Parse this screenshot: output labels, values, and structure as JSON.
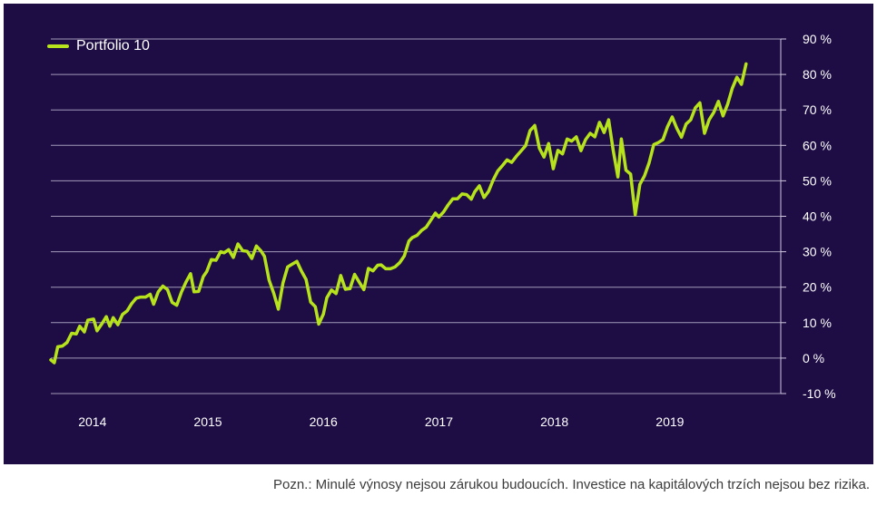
{
  "colors": {
    "background": "#1e0d45",
    "line": "#b7e31c",
    "grid": "#cfc8df",
    "text": "#ffffff",
    "note": "#3b3b3b"
  },
  "legend": {
    "label": "Portfolio 10",
    "placement": "top-left"
  },
  "note": "Pozn.: Minulé výnosy nejsou zárukou budoucích. Investice na kapitálových trzích nejsou bez rizika.",
  "chart_data": {
    "type": "line",
    "title": "",
    "xlabel": "",
    "ylabel": "",
    "xlim": [
      2013.64,
      2019.96
    ],
    "ylim": [
      -10,
      90
    ],
    "grid": true,
    "legend_position": "top-left",
    "y_ticks": [
      {
        "value": 90,
        "label": "90 %"
      },
      {
        "value": 80,
        "label": "80 %"
      },
      {
        "value": 70,
        "label": "70 %"
      },
      {
        "value": 60,
        "label": "60 %"
      },
      {
        "value": 50,
        "label": "50 %"
      },
      {
        "value": 40,
        "label": "40 %"
      },
      {
        "value": 30,
        "label": "30 %"
      },
      {
        "value": 20,
        "label": "20 %"
      },
      {
        "value": 10,
        "label": "10 %"
      },
      {
        "value": 0,
        "label": "0 %"
      },
      {
        "value": -10,
        "label": "-10 %"
      }
    ],
    "x_ticks": [
      {
        "value": 2014.0,
        "label": "2014"
      },
      {
        "value": 2015.0,
        "label": "2015"
      },
      {
        "value": 2016.0,
        "label": "2016"
      },
      {
        "value": 2017.0,
        "label": "2017"
      },
      {
        "value": 2018.0,
        "label": "2018"
      },
      {
        "value": 2019.0,
        "label": "2019"
      }
    ],
    "series": [
      {
        "name": "Portfolio 10",
        "color": "#b7e31c",
        "points": [
          [
            2013.64,
            -0.5
          ],
          [
            2013.67,
            -1.3
          ],
          [
            2013.7,
            3.2
          ],
          [
            2013.74,
            3.4
          ],
          [
            2013.78,
            4.4
          ],
          [
            2013.82,
            7.0
          ],
          [
            2013.86,
            6.8
          ],
          [
            2013.89,
            9.0
          ],
          [
            2013.93,
            7.4
          ],
          [
            2013.96,
            10.7
          ],
          [
            2014.01,
            11.0
          ],
          [
            2014.04,
            7.7
          ],
          [
            2014.08,
            9.6
          ],
          [
            2014.12,
            11.7
          ],
          [
            2014.15,
            9.0
          ],
          [
            2014.18,
            11.4
          ],
          [
            2014.22,
            9.4
          ],
          [
            2014.26,
            12.3
          ],
          [
            2014.3,
            13.3
          ],
          [
            2014.34,
            15.4
          ],
          [
            2014.38,
            16.9
          ],
          [
            2014.42,
            17.2
          ],
          [
            2014.46,
            17.2
          ],
          [
            2014.5,
            18.0
          ],
          [
            2014.53,
            15.2
          ],
          [
            2014.57,
            18.7
          ],
          [
            2014.61,
            20.3
          ],
          [
            2014.65,
            19.3
          ],
          [
            2014.69,
            15.7
          ],
          [
            2014.73,
            14.9
          ],
          [
            2014.77,
            18.6
          ],
          [
            2014.81,
            21.4
          ],
          [
            2014.85,
            23.8
          ],
          [
            2014.88,
            18.7
          ],
          [
            2014.92,
            18.8
          ],
          [
            2014.96,
            23.0
          ],
          [
            2014.99,
            24.4
          ],
          [
            2015.03,
            27.8
          ],
          [
            2015.07,
            27.6
          ],
          [
            2015.11,
            30.0
          ],
          [
            2015.14,
            29.7
          ],
          [
            2015.18,
            30.6
          ],
          [
            2015.22,
            28.4
          ],
          [
            2015.26,
            32.2
          ],
          [
            2015.3,
            30.3
          ],
          [
            2015.34,
            30.1
          ],
          [
            2015.38,
            28.1
          ],
          [
            2015.42,
            31.6
          ],
          [
            2015.46,
            30.2
          ],
          [
            2015.49,
            28.7
          ],
          [
            2015.53,
            22.0
          ],
          [
            2015.57,
            18.3
          ],
          [
            2015.61,
            13.8
          ],
          [
            2015.65,
            21.2
          ],
          [
            2015.69,
            25.7
          ],
          [
            2015.73,
            26.5
          ],
          [
            2015.77,
            27.3
          ],
          [
            2015.81,
            24.5
          ],
          [
            2015.85,
            22.2
          ],
          [
            2015.89,
            15.8
          ],
          [
            2015.93,
            14.5
          ],
          [
            2015.96,
            9.6
          ],
          [
            2016.0,
            12.4
          ],
          [
            2016.03,
            17.0
          ],
          [
            2016.07,
            19.2
          ],
          [
            2016.11,
            18.2
          ],
          [
            2016.15,
            23.3
          ],
          [
            2016.19,
            19.4
          ],
          [
            2016.23,
            19.6
          ],
          [
            2016.27,
            23.6
          ],
          [
            2016.31,
            21.4
          ],
          [
            2016.35,
            19.3
          ],
          [
            2016.39,
            25.3
          ],
          [
            2016.43,
            24.6
          ],
          [
            2016.47,
            26.2
          ],
          [
            2016.5,
            26.3
          ],
          [
            2016.54,
            25.2
          ],
          [
            2016.58,
            25.2
          ],
          [
            2016.62,
            25.7
          ],
          [
            2016.66,
            26.9
          ],
          [
            2016.7,
            28.8
          ],
          [
            2016.74,
            33.0
          ],
          [
            2016.77,
            34.0
          ],
          [
            2016.81,
            34.6
          ],
          [
            2016.85,
            36.0
          ],
          [
            2016.89,
            36.9
          ],
          [
            2016.93,
            38.9
          ],
          [
            2016.97,
            40.9
          ],
          [
            2017.0,
            39.8
          ],
          [
            2017.04,
            41.2
          ],
          [
            2017.08,
            43.2
          ],
          [
            2017.12,
            44.9
          ],
          [
            2017.16,
            44.9
          ],
          [
            2017.2,
            46.3
          ],
          [
            2017.24,
            46.1
          ],
          [
            2017.28,
            44.8
          ],
          [
            2017.31,
            46.9
          ],
          [
            2017.35,
            48.6
          ],
          [
            2017.39,
            45.3
          ],
          [
            2017.43,
            47.0
          ],
          [
            2017.47,
            50.2
          ],
          [
            2017.51,
            52.8
          ],
          [
            2017.55,
            54.3
          ],
          [
            2017.59,
            55.9
          ],
          [
            2017.63,
            55.2
          ],
          [
            2017.67,
            56.9
          ],
          [
            2017.71,
            58.4
          ],
          [
            2017.75,
            59.9
          ],
          [
            2017.79,
            64.2
          ],
          [
            2017.83,
            65.6
          ],
          [
            2017.87,
            59.2
          ],
          [
            2017.91,
            56.7
          ],
          [
            2017.95,
            60.5
          ],
          [
            2017.99,
            53.4
          ],
          [
            2018.03,
            58.6
          ],
          [
            2018.07,
            57.6
          ],
          [
            2018.11,
            61.8
          ],
          [
            2018.15,
            61.2
          ],
          [
            2018.19,
            62.4
          ],
          [
            2018.23,
            58.5
          ],
          [
            2018.27,
            61.6
          ],
          [
            2018.31,
            63.4
          ],
          [
            2018.35,
            62.4
          ],
          [
            2018.39,
            66.5
          ],
          [
            2018.43,
            63.6
          ],
          [
            2018.47,
            67.2
          ],
          [
            2018.51,
            58.5
          ],
          [
            2018.55,
            51.1
          ],
          [
            2018.58,
            61.8
          ],
          [
            2018.62,
            53.0
          ],
          [
            2018.66,
            51.9
          ],
          [
            2018.7,
            40.4
          ],
          [
            2018.74,
            49.0
          ],
          [
            2018.78,
            51.4
          ],
          [
            2018.82,
            55.1
          ],
          [
            2018.86,
            60.2
          ],
          [
            2018.9,
            60.8
          ],
          [
            2018.94,
            61.6
          ],
          [
            2018.98,
            65.3
          ],
          [
            2019.02,
            68.0
          ],
          [
            2019.06,
            64.8
          ],
          [
            2019.1,
            62.3
          ],
          [
            2019.14,
            66.0
          ],
          [
            2019.18,
            67.2
          ],
          [
            2019.22,
            70.6
          ],
          [
            2019.26,
            72.0
          ],
          [
            2019.3,
            63.4
          ],
          [
            2019.34,
            67.2
          ],
          [
            2019.38,
            69.3
          ],
          [
            2019.42,
            72.4
          ],
          [
            2019.46,
            68.3
          ],
          [
            2019.5,
            71.6
          ],
          [
            2019.54,
            76.1
          ],
          [
            2019.58,
            79.2
          ],
          [
            2019.62,
            77.2
          ],
          [
            2019.66,
            83.0
          ]
        ]
      }
    ]
  }
}
